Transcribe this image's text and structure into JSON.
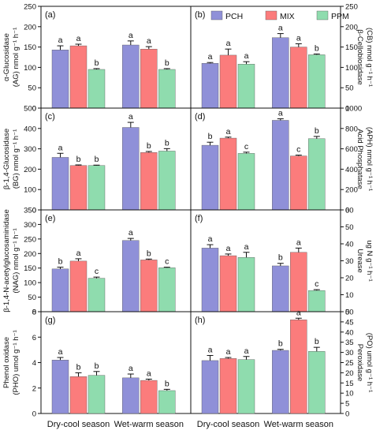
{
  "figure": {
    "x_categories": [
      "Dry-cool season",
      "Wet-warm season"
    ]
  },
  "legend": [
    {
      "name": "PCH",
      "color": "#8f90d8"
    },
    {
      "name": "MIX",
      "color": "#fb7c7c"
    },
    {
      "name": "PPM",
      "color": "#8fdcae"
    }
  ],
  "chart_data": [
    {
      "type": "bar",
      "panel": "(a)",
      "ylabel": [
        "α-Glucosidase",
        "(AG)  nmol g⁻¹ h⁻¹"
      ],
      "axis_side": "left",
      "ylim": [
        0,
        250
      ],
      "yticks": [
        0,
        50,
        100,
        150,
        200,
        250
      ],
      "categories": [
        "Dry-cool season",
        "Wet-warm season"
      ],
      "series": [
        {
          "name": "PCH",
          "values": [
            143,
            155
          ],
          "errors": [
            10,
            10
          ],
          "letters": [
            "a",
            "a"
          ]
        },
        {
          "name": "MIX",
          "values": [
            153,
            145
          ],
          "errors": [
            4,
            6
          ],
          "letters": [
            "a",
            "a"
          ]
        },
        {
          "name": "PPM",
          "values": [
            95,
            95
          ],
          "errors": [
            2,
            2
          ],
          "letters": [
            "b",
            "b"
          ]
        }
      ]
    },
    {
      "type": "bar",
      "panel": "(b)",
      "ylabel": [
        "β-Cellobiosidase",
        "(CB)  nmol g⁻¹ h⁻¹"
      ],
      "axis_side": "right",
      "ylim": [
        0,
        250
      ],
      "yticks": [
        0,
        50,
        100,
        150,
        200,
        250
      ],
      "categories": [
        "Dry-cool season",
        "Wet-warm season"
      ],
      "series": [
        {
          "name": "PCH",
          "values": [
            110,
            173
          ],
          "errors": [
            2,
            10
          ],
          "letters": [
            "a",
            "a"
          ]
        },
        {
          "name": "MIX",
          "values": [
            130,
            150
          ],
          "errors": [
            15,
            8
          ],
          "letters": [
            "a",
            "a"
          ]
        },
        {
          "name": "PPM",
          "values": [
            108,
            131
          ],
          "errors": [
            6,
            2
          ],
          "letters": [
            "a",
            "b"
          ]
        }
      ]
    },
    {
      "type": "bar",
      "panel": "(c)",
      "ylabel": [
        "β-1,4-Glucosidase",
        "(BG)  nmol g⁻¹ h⁻¹"
      ],
      "axis_side": "left",
      "ylim": [
        0,
        500
      ],
      "yticks": [
        0,
        100,
        200,
        300,
        400,
        500
      ],
      "categories": [
        "Dry-cool season",
        "Wet-warm season"
      ],
      "series": [
        {
          "name": "PCH",
          "values": [
            258,
            405
          ],
          "errors": [
            20,
            25
          ],
          "letters": [
            "a",
            "a"
          ]
        },
        {
          "name": "MIX",
          "values": [
            218,
            282
          ],
          "errors": [
            3,
            5
          ],
          "letters": [
            "b",
            "b"
          ]
        },
        {
          "name": "PPM",
          "values": [
            218,
            289
          ],
          "errors": [
            2,
            12
          ],
          "letters": [
            "b",
            "b"
          ]
        }
      ]
    },
    {
      "type": "bar",
      "panel": "(d)",
      "ylabel": [
        "Acid Phosphatase",
        "(APH)  nmol g⁻¹ h⁻¹"
      ],
      "axis_side": "right",
      "ylim": [
        0,
        1000
      ],
      "yticks": [
        0,
        200,
        400,
        600,
        800,
        1000
      ],
      "categories": [
        "Dry-cool season",
        "Wet-warm season"
      ],
      "series": [
        {
          "name": "PCH",
          "values": [
            635,
            880
          ],
          "errors": [
            30,
            15
          ],
          "letters": [
            "b",
            "a"
          ]
        },
        {
          "name": "MIX",
          "values": [
            705,
            530
          ],
          "errors": [
            10,
            8
          ],
          "letters": [
            "a",
            "c"
          ]
        },
        {
          "name": "PPM",
          "values": [
            555,
            700
          ],
          "errors": [
            12,
            22
          ],
          "letters": [
            "c",
            "b"
          ]
        }
      ]
    },
    {
      "type": "bar",
      "panel": "(e)",
      "ylabel": [
        "β-1,4-N-acetylglucosaminidase",
        "(NAG)  nmol g⁻¹ h⁻¹"
      ],
      "axis_side": "left",
      "ylim": [
        0,
        350
      ],
      "yticks": [
        0,
        50,
        100,
        150,
        200,
        250,
        300,
        350
      ],
      "categories": [
        "Dry-cool season",
        "Wet-warm season"
      ],
      "series": [
        {
          "name": "PCH",
          "values": [
            147,
            245
          ],
          "errors": [
            6,
            7
          ],
          "letters": [
            "b",
            "a"
          ]
        },
        {
          "name": "MIX",
          "values": [
            174,
            178
          ],
          "errors": [
            8,
            3
          ],
          "letters": [
            "a",
            "b"
          ]
        },
        {
          "name": "PPM",
          "values": [
            115,
            151
          ],
          "errors": [
            4,
            2
          ],
          "letters": [
            "c",
            "c"
          ]
        }
      ]
    },
    {
      "type": "bar",
      "panel": "(f)",
      "ylabel": [
        "Urease",
        "ug N g⁻¹ h⁻¹"
      ],
      "axis_side": "right",
      "ylim": [
        0,
        60
      ],
      "yticks": [
        0,
        10,
        20,
        30,
        40,
        50,
        60
      ],
      "categories": [
        "Dry-cool season",
        "Wet-warm season"
      ],
      "series": [
        {
          "name": "PCH",
          "values": [
            37.5,
            27
          ],
          "errors": [
            2,
            1.5
          ],
          "letters": [
            "a",
            "b"
          ]
        },
        {
          "name": "MIX",
          "values": [
            33,
            35
          ],
          "errors": [
            1,
            2.5
          ],
          "letters": [
            "a",
            "a"
          ]
        },
        {
          "name": "PPM",
          "values": [
            32,
            12.5
          ],
          "errors": [
            3,
            0.5
          ],
          "letters": [
            "a",
            "c"
          ]
        }
      ]
    },
    {
      "type": "bar",
      "panel": "(g)",
      "ylabel": [
        "Phenol oxidase",
        "(PHO)  umol g⁻¹ h⁻¹"
      ],
      "axis_side": "left",
      "ylim": [
        0,
        8
      ],
      "yticks": [
        0,
        2,
        4,
        6,
        8
      ],
      "categories": [
        "Dry-cool season",
        "Wet-warm season"
      ],
      "series": [
        {
          "name": "PCH",
          "values": [
            4.2,
            2.8
          ],
          "errors": [
            0.2,
            0.3
          ],
          "letters": [
            "a",
            "a"
          ]
        },
        {
          "name": "MIX",
          "values": [
            2.9,
            2.6
          ],
          "errors": [
            0.3,
            0.1
          ],
          "letters": [
            "b",
            "a"
          ]
        },
        {
          "name": "PPM",
          "values": [
            3.0,
            1.8
          ],
          "errors": [
            0.3,
            0.1
          ],
          "letters": [
            "b",
            "b"
          ]
        }
      ]
    },
    {
      "type": "bar",
      "panel": "(h)",
      "ylabel": [
        "Peroxidase",
        "(PO)  umol g⁻¹ h⁻¹"
      ],
      "axis_side": "right",
      "ylim": [
        0,
        50
      ],
      "yticks": [
        0,
        5,
        10,
        15,
        20,
        25,
        30,
        35,
        40,
        45,
        50
      ],
      "categories": [
        "Dry-cool season",
        "Wet-warm season"
      ],
      "series": [
        {
          "name": "PCH",
          "values": [
            26,
            31
          ],
          "errors": [
            2.5,
            0.5
          ],
          "letters": [
            "a",
            "b"
          ]
        },
        {
          "name": "MIX",
          "values": [
            27,
            46
          ],
          "errors": [
            0.5,
            0.8
          ],
          "letters": [
            "a",
            "a"
          ]
        },
        {
          "name": "PPM",
          "values": [
            26.5,
            30.5
          ],
          "errors": [
            1.5,
            2
          ],
          "letters": [
            "a",
            "b"
          ]
        }
      ]
    }
  ]
}
